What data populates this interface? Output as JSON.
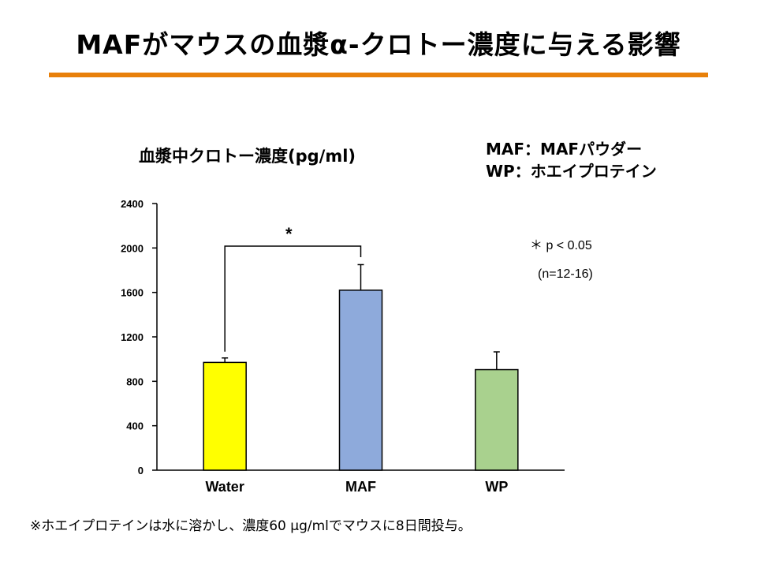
{
  "slide": {
    "title": "MAFがマウスの血漿α-クロトー濃度に与える影響",
    "footnote": "※ホエイプロテインは水に溶かし、濃度60 μg/mlでマウスに8日間投与。",
    "accent_color": "#e8800a"
  },
  "legend_note": {
    "line1": "MAF：MAFパウダー",
    "line2": "WP：ホエイプロテイン"
  },
  "significance": {
    "marker": "*",
    "note": "＊ p < 0.05",
    "n": "(n=12-16)"
  },
  "chart_data": {
    "type": "bar",
    "title": "血漿中クロトー濃度(pg/ml)",
    "categories": [
      "Water",
      "MAF",
      "WP"
    ],
    "values": [
      970,
      1620,
      905
    ],
    "errors": [
      40,
      230,
      160
    ],
    "colors": [
      "#ffff00",
      "#8eaadb",
      "#a9d18e"
    ],
    "ylim": [
      0,
      2400
    ],
    "yticks": [
      0,
      400,
      800,
      1200,
      1600,
      2000,
      2400
    ],
    "grid": false,
    "xlabel": "",
    "ylabel": "",
    "significance_pair": [
      "Water",
      "MAF"
    ]
  }
}
